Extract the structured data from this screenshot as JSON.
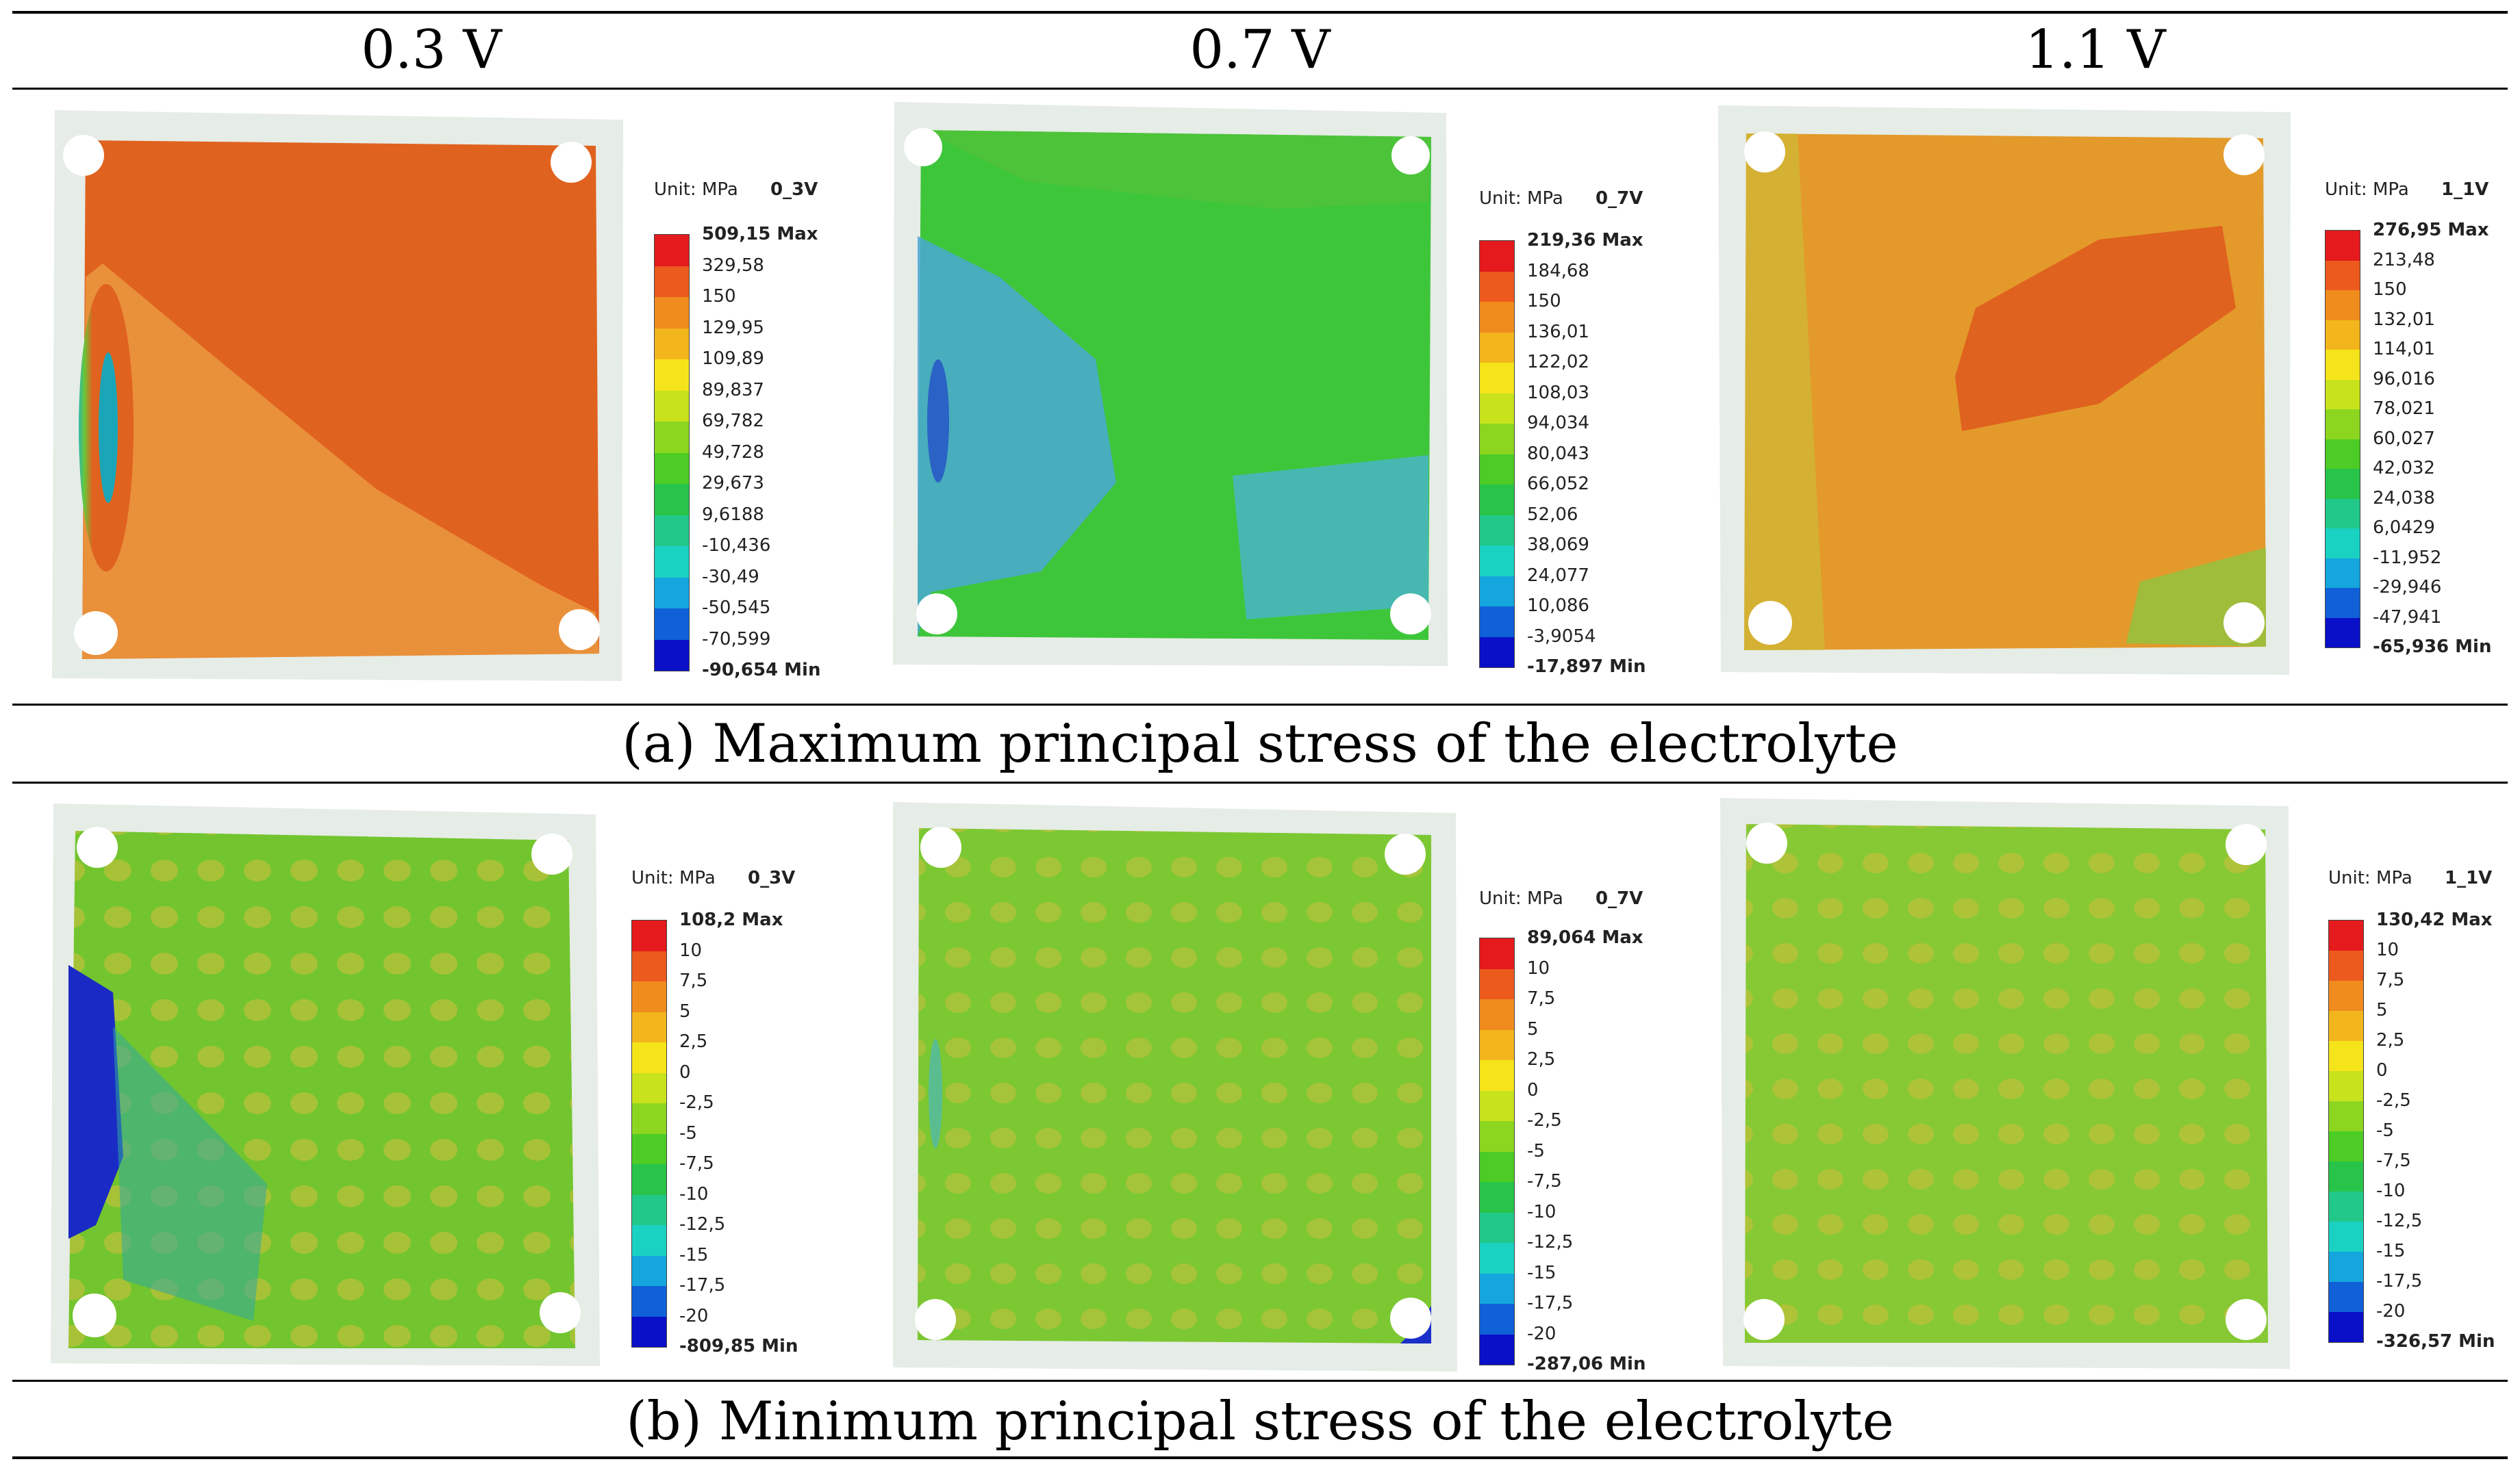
{
  "columns": [
    "0.3 V",
    "0.7 V",
    "1.1 V"
  ],
  "captions": {
    "a": "(a)  Maximum principal stress of the electrolyte",
    "b": "(b)  Minimum principal stress of the electrolyte"
  },
  "colors": {
    "red": "#e41a1c",
    "orange": "#ee7a1a",
    "yellow": "#f5e41a",
    "green": "#28c428",
    "cyan": "#1ad2d2",
    "blue": "#0a10c8"
  },
  "scale_colors": [
    "#e41a1c",
    "#ec5a1e",
    "#f08c1e",
    "#f2b61c",
    "#f5e41a",
    "#c8e21c",
    "#8cd620",
    "#4ccc24",
    "#28c44a",
    "#22c88a",
    "#1ad2c2",
    "#14a6dc",
    "#1060d8",
    "#0a10c8"
  ],
  "panels": [
    {
      "row": "a",
      "col": 0,
      "unit": "Unit: MPa",
      "name": "0_3V",
      "fill": "#e0621f",
      "labels": [
        "509,15 Max",
        "329,58",
        "150",
        "129,95",
        "109,89",
        "89,837",
        "69,782",
        "49,728",
        "29,673",
        "9,6188",
        "-10,436",
        "-30,49",
        "-50,545",
        "-70,599",
        "-90,654 Min"
      ]
    },
    {
      "row": "a",
      "col": 1,
      "unit": "Unit: MPa",
      "name": "0_7V",
      "fill": "#3ec63a",
      "labels": [
        "219,36 Max",
        "184,68",
        "150",
        "136,01",
        "122,02",
        "108,03",
        "94,034",
        "80,043",
        "66,052",
        "52,06",
        "38,069",
        "24,077",
        "10,086",
        "-3,9054",
        "-17,897 Min"
      ]
    },
    {
      "row": "a",
      "col": 2,
      "unit": "Unit: MPa",
      "name": "1_1V",
      "fill": "#e39a2a",
      "labels": [
        "276,95 Max",
        "213,48",
        "150",
        "132,01",
        "114,01",
        "96,016",
        "78,021",
        "60,027",
        "42,032",
        "24,038",
        "6,0429",
        "-11,952",
        "-29,946",
        "-47,941",
        "-65,936 Min"
      ]
    },
    {
      "row": "b",
      "col": 0,
      "unit": "Unit: MPa",
      "name": "0_3V",
      "fill": "#72c52e",
      "labels": [
        "108,2 Max",
        "10",
        "7,5",
        "5",
        "2,5",
        "0",
        "-2,5",
        "-5",
        "-7,5",
        "-10",
        "-12,5",
        "-15",
        "-17,5",
        "-20",
        "-809,85 Min"
      ]
    },
    {
      "row": "b",
      "col": 1,
      "unit": "Unit: MPa",
      "name": "0_7V",
      "fill": "#7cc832",
      "labels": [
        "89,064 Max",
        "10",
        "7,5",
        "5",
        "2,5",
        "0",
        "-2,5",
        "-5",
        "-7,5",
        "-10",
        "-12,5",
        "-15",
        "-17,5",
        "-20",
        "-287,06 Min"
      ]
    },
    {
      "row": "b",
      "col": 2,
      "unit": "Unit: MPa",
      "name": "1_1V",
      "fill": "#86c934",
      "labels": [
        "130,42 Max",
        "10",
        "7,5",
        "5",
        "2,5",
        "0",
        "-2,5",
        "-5",
        "-7,5",
        "-10",
        "-12,5",
        "-15",
        "-17,5",
        "-20",
        "-326,57 Min"
      ]
    }
  ]
}
